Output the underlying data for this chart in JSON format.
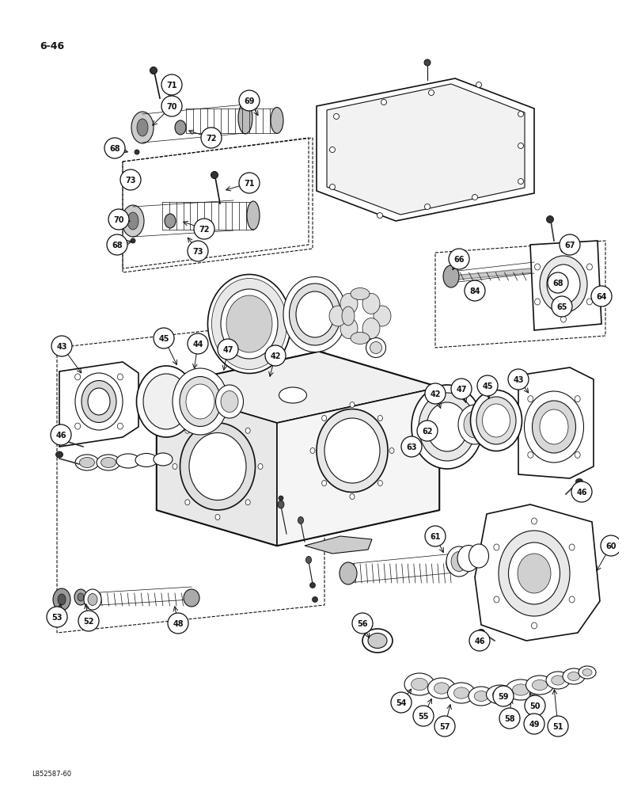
{
  "page_num": "6-46",
  "doc_num": "L852587-60",
  "background": "#ffffff",
  "lc": "#111111",
  "fig_width": 7.72,
  "fig_height": 10.0,
  "dpi": 100
}
